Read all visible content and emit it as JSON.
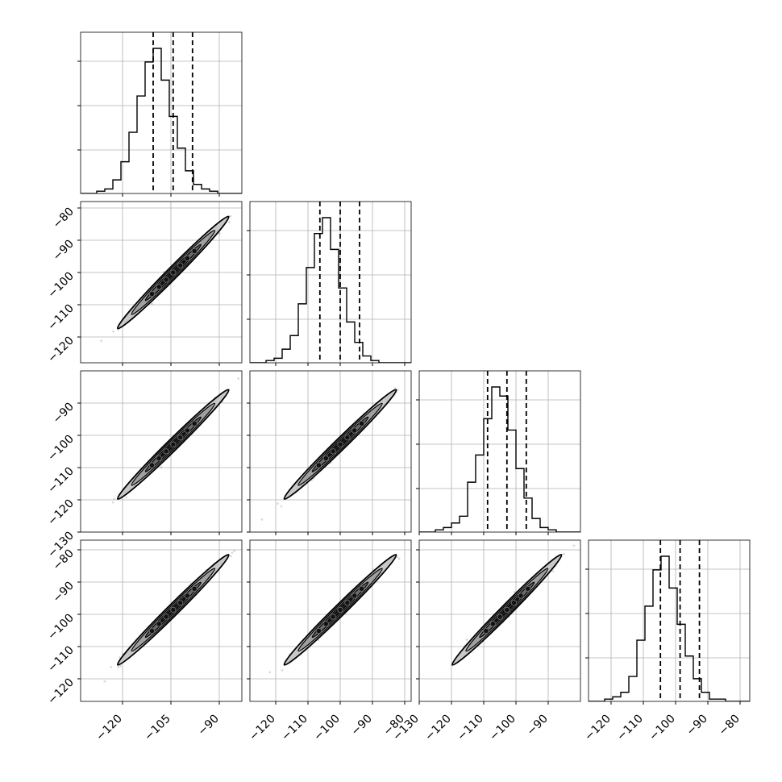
{
  "chart_data": {
    "type": "corner",
    "title": "",
    "grid": true,
    "quantiles": [
      0.16,
      0.5,
      0.84
    ],
    "color": "#000000",
    "fill_color": "#cccccc",
    "params": [
      {
        "name": "p0",
        "label": "",
        "range": [
          -133,
          -83
        ],
        "ticks": [
          -120,
          -105,
          -90
        ],
        "tick_labels": [
          "−120",
          "−105",
          "−90"
        ],
        "hist": {
          "edges_start": -133,
          "bin_width": 2.5,
          "counts": [
            0,
            0,
            1,
            2,
            6,
            14,
            27,
            43,
            58,
            64,
            50,
            34,
            20,
            10,
            4,
            2,
            1,
            0,
            0,
            0
          ]
        },
        "quantile_values": [
          -110.5,
          -104.3,
          -98.3
        ]
      },
      {
        "name": "p1",
        "label": "",
        "range": [
          -128,
          -78
        ],
        "ticks": [
          -120,
          -110,
          -100,
          -90,
          -80
        ],
        "tick_labels": [
          "−120",
          "−110",
          "−100",
          "−90",
          "−80"
        ],
        "hist": {
          "edges_start": -128,
          "bin_width": 2.5,
          "counts": [
            0,
            0,
            1,
            2,
            6,
            12,
            26,
            42,
            57,
            64,
            50,
            33,
            18,
            9,
            3,
            1,
            0,
            0,
            0,
            0
          ]
        },
        "quantile_values": [
          -106.3,
          -100.0,
          -94.0
        ]
      },
      {
        "name": "p2",
        "label": "",
        "range": [
          -130,
          -80
        ],
        "ticks": [
          -130,
          -120,
          -110,
          -100,
          -90
        ],
        "tick_labels": [
          "−130",
          "−120",
          "−110",
          "−100",
          "−90"
        ],
        "hist": {
          "edges_start": -130,
          "bin_width": 2.5,
          "counts": [
            0,
            0,
            1,
            2,
            4,
            7,
            22,
            34,
            50,
            64,
            60,
            45,
            28,
            15,
            6,
            2,
            1,
            0,
            0,
            0
          ]
        },
        "quantile_values": [
          -108.8,
          -102.8,
          -96.8
        ]
      },
      {
        "name": "p3",
        "label": "",
        "range": [
          -127,
          -77
        ],
        "ticks": [
          -120,
          -110,
          -100,
          -90,
          -80
        ],
        "tick_labels": [
          "−120",
          "−110",
          "−100",
          "−90",
          "−80"
        ],
        "hist": {
          "edges_start": -127,
          "bin_width": 2.5,
          "counts": [
            0,
            0,
            1,
            2,
            4,
            11,
            27,
            42,
            58,
            64,
            50,
            34,
            20,
            10,
            4,
            1,
            1,
            0,
            0,
            0
          ]
        },
        "quantile_values": [
          -104.7,
          -98.6,
          -92.6
        ]
      }
    ],
    "y_ticks_by_row": {
      "1": {
        "ticks": [
          -120,
          -110,
          -100,
          -90,
          -80
        ],
        "tick_labels": [
          "−120",
          "−110",
          "−100",
          "−90",
          "−80"
        ]
      },
      "2": {
        "ticks": [
          -130,
          -120,
          -110,
          -100,
          -90
        ],
        "tick_labels": [
          "−130",
          "−120",
          "−110",
          "−100",
          "−90"
        ]
      },
      "3": {
        "ticks": [
          -120,
          -110,
          -100,
          -90,
          -80
        ],
        "tick_labels": [
          "−120",
          "−110",
          "−100",
          "−90",
          "−80"
        ]
      }
    },
    "correlation": 0.99,
    "sigma_levels": [
      0.5,
      1.0,
      1.5,
      2.0
    ]
  }
}
